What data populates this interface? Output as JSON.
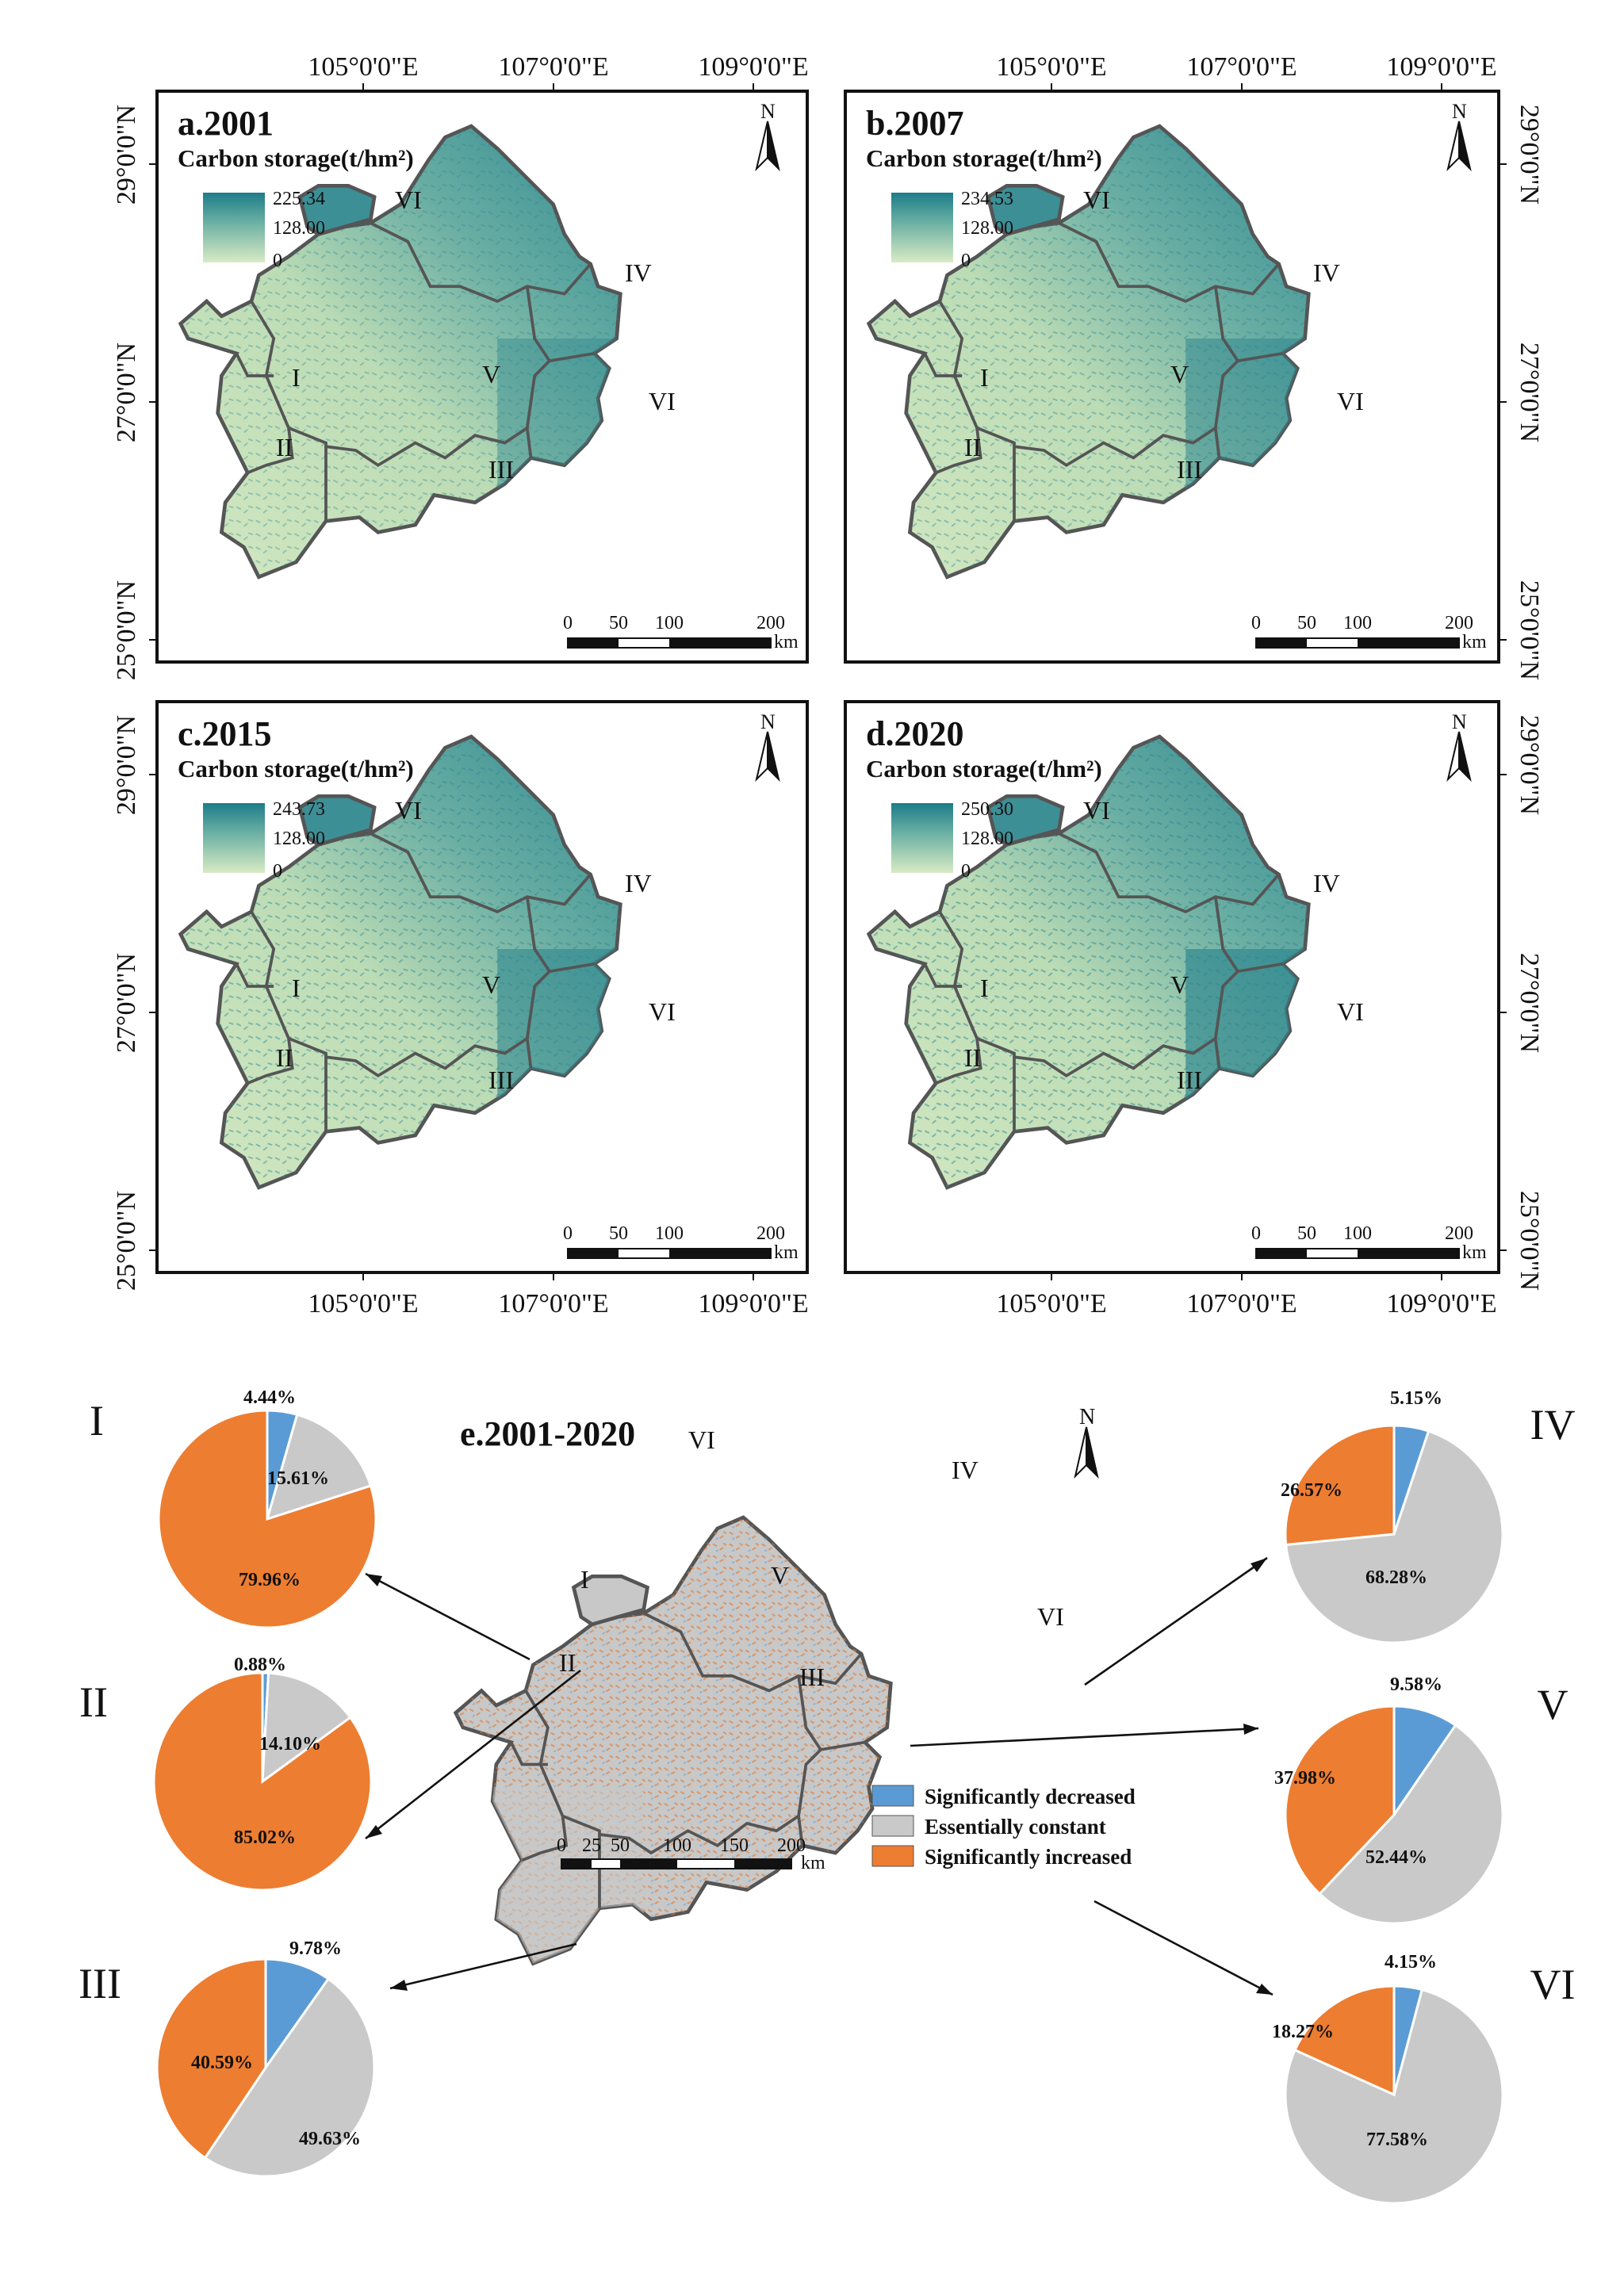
{
  "maps": [
    {
      "id": "a",
      "title": "a.2001",
      "legend_title": "Carbon storage(t/hm²)",
      "legend_max": "225.34",
      "legend_mid": "128.00",
      "legend_min": "0"
    },
    {
      "id": "b",
      "title": "b.2007",
      "legend_title": "Carbon storage(t/hm²)",
      "legend_max": "234.53",
      "legend_mid": "128.00",
      "legend_min": "0"
    },
    {
      "id": "c",
      "title": "c.2015",
      "legend_title": "Carbon storage(t/hm²)",
      "legend_max": "243.73",
      "legend_mid": "128.00",
      "legend_min": "0"
    },
    {
      "id": "d",
      "title": "d.2020",
      "legend_title": "Carbon storage(t/hm²)",
      "legend_max": "250.30",
      "legend_mid": "128.00",
      "legend_min": "0"
    }
  ],
  "axes": {
    "lon": [
      "105°0'0\"E",
      "107°0'0\"E",
      "109°0'0\"E"
    ],
    "lat": [
      "29°0'0\"N",
      "27°0'0\"N",
      "25°0'0\"N"
    ]
  },
  "north_label": "N",
  "regions": [
    "I",
    "II",
    "III",
    "IV",
    "V",
    "VI"
  ],
  "scale_bar": {
    "ticks": [
      "0",
      "50",
      "100",
      "200"
    ],
    "unit": "km"
  },
  "change_map": {
    "title": "e.2001-2020",
    "scale_ticks": [
      "0",
      "25",
      "50",
      "100",
      "150",
      "200"
    ],
    "unit": "km",
    "legend": [
      {
        "label": "Significantly decreased",
        "color": "#5b9bd5"
      },
      {
        "label": "Essentially constant",
        "color": "#c9c9c9"
      },
      {
        "label": "Significantly increased",
        "color": "#ed7d31"
      }
    ]
  },
  "chart_data": {
    "type": "pie",
    "categories": [
      "Significantly decreased",
      "Essentially constant",
      "Significantly increased"
    ],
    "colors": [
      "#5b9bd5",
      "#c9c9c9",
      "#ed7d31"
    ],
    "series": [
      {
        "name": "I",
        "values": [
          4.44,
          15.61,
          79.96
        ]
      },
      {
        "name": "II",
        "values": [
          0.88,
          14.1,
          85.02
        ]
      },
      {
        "name": "III",
        "values": [
          9.78,
          49.63,
          40.59
        ]
      },
      {
        "name": "IV",
        "values": [
          5.15,
          68.28,
          26.57
        ]
      },
      {
        "name": "V",
        "values": [
          9.58,
          52.44,
          37.98
        ]
      },
      {
        "name": "VI",
        "values": [
          4.15,
          77.58,
          18.27
        ]
      }
    ],
    "labels": [
      [
        "4.44%",
        "15.61%",
        "79.96%"
      ],
      [
        "0.88%",
        "14.10%",
        "85.02%"
      ],
      [
        "9.78%",
        "49.63%",
        "40.59%"
      ],
      [
        "5.15%",
        "68.28%",
        "26.57%"
      ],
      [
        "9.58%",
        "52.44%",
        "37.98%"
      ],
      [
        "4.15%",
        "77.58%",
        "18.27%"
      ]
    ]
  }
}
